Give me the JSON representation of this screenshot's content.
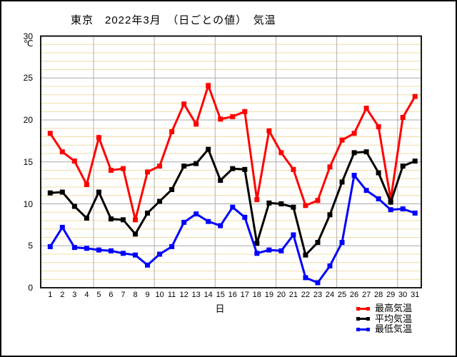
{
  "title": "東京　2022年3月　（日ごとの値）　気温",
  "y_axis": {
    "unit": "℃",
    "min": 0,
    "max": 30,
    "major_step": 5,
    "minor_step": 1,
    "tick_labels": [
      "0",
      "5",
      "10",
      "15",
      "20",
      "25",
      "30"
    ]
  },
  "x_axis": {
    "label": "日",
    "tick_labels": [
      "1",
      "2",
      "3",
      "4",
      "5",
      "6",
      "7",
      "8",
      "9",
      "10",
      "11",
      "12",
      "13",
      "14",
      "15",
      "16",
      "17",
      "18",
      "19",
      "20",
      "21",
      "22",
      "23",
      "24",
      "25",
      "26",
      "27",
      "28",
      "29",
      "30",
      "31"
    ]
  },
  "legend": {
    "position": "bottom-right",
    "items": [
      {
        "label": "最高気温",
        "color": "#ff0000"
      },
      {
        "label": "平均気温",
        "color": "#000000"
      },
      {
        "label": "最低気温",
        "color": "#0000ff"
      }
    ]
  },
  "grid_colors": {
    "minor_horizontal": "#f2dca8",
    "major_horizontal": "#a8a8a8",
    "vertical": "#b0b0b0"
  },
  "chart_data": {
    "type": "line",
    "title": "東京　2022年3月　（日ごとの値）　気温",
    "xlabel": "日",
    "ylabel": "℃",
    "ylim": [
      0,
      30
    ],
    "x": [
      1,
      2,
      3,
      4,
      5,
      6,
      7,
      8,
      9,
      10,
      11,
      12,
      13,
      14,
      15,
      16,
      17,
      18,
      19,
      20,
      21,
      22,
      23,
      24,
      25,
      26,
      27,
      28,
      29,
      30,
      31
    ],
    "series": [
      {
        "name": "最高気温",
        "color": "#ff0000",
        "values": [
          18.4,
          16.2,
          15.1,
          12.3,
          17.9,
          14.0,
          14.2,
          8.1,
          13.8,
          14.5,
          18.6,
          21.9,
          19.5,
          24.1,
          20.1,
          20.4,
          21.0,
          10.5,
          18.7,
          16.1,
          14.1,
          9.8,
          10.4,
          14.4,
          17.6,
          18.4,
          21.4,
          19.2,
          10.5,
          20.3,
          22.8
        ]
      },
      {
        "name": "平均気温",
        "color": "#000000",
        "values": [
          11.3,
          11.4,
          9.7,
          8.3,
          11.4,
          8.2,
          8.1,
          6.4,
          8.9,
          10.3,
          11.7,
          14.5,
          14.8,
          16.5,
          12.8,
          14.2,
          14.1,
          5.3,
          10.1,
          10.0,
          9.6,
          3.9,
          5.4,
          8.7,
          12.6,
          16.1,
          16.2,
          13.7,
          10.2,
          14.5,
          15.1
        ]
      },
      {
        "name": "最低気温",
        "color": "#0000ff",
        "values": [
          4.9,
          7.2,
          4.8,
          4.7,
          4.5,
          4.4,
          4.1,
          3.9,
          2.7,
          4.0,
          4.9,
          7.8,
          8.8,
          7.9,
          7.4,
          9.6,
          8.4,
          4.1,
          4.5,
          4.4,
          6.3,
          1.2,
          0.6,
          2.6,
          5.4,
          13.4,
          11.6,
          10.6,
          9.3,
          9.4,
          8.9
        ]
      }
    ],
    "grid": {
      "horizontal_minor_every": 1,
      "horizontal_major_every": 5,
      "vertical_every_days": 5
    },
    "legend_position": "bottom-right"
  }
}
